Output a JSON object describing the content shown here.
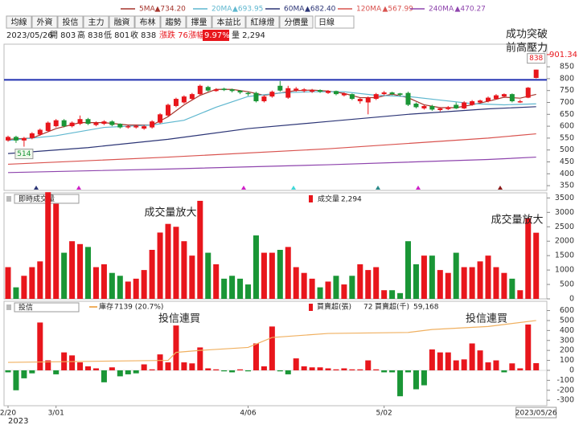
{
  "toolbar": {
    "tabs": [
      "均線",
      "外資",
      "投信",
      "主力",
      "融資",
      "布林",
      "趨勢",
      "擇量",
      "本益比",
      "紅綠燈",
      "分價量"
    ],
    "period": "日線"
  },
  "info": {
    "date": "2023/05/26",
    "ohlc": [
      "開 803",
      "高 838",
      "低 801",
      "收 838"
    ],
    "change": "漲跌 76",
    "pct_label": "漲幅",
    "pct": "9.97%",
    "volume": "量 2,294"
  },
  "chart_data": [
    {
      "type": "candlestick",
      "open": [
        540,
        555,
        540,
        550,
        565,
        580,
        600,
        625,
        600,
        610,
        630,
        605,
        610,
        620,
        610,
        595,
        595,
        590,
        595,
        615,
        645,
        685,
        700,
        715,
        735,
        765,
        748,
        758,
        755,
        750,
        740,
        740,
        705,
        725,
        770,
        720,
        750,
        748,
        745,
        752,
        740,
        748,
        730,
        735,
        705,
        700,
        715,
        735,
        742,
        738,
        740,
        695,
        675,
        685,
        668,
        672,
        690,
        675,
        690,
        700,
        705,
        715,
        725,
        735,
        700,
        720,
        803
      ],
      "high": [
        560,
        560,
        555,
        575,
        590,
        620,
        630,
        630,
        620,
        645,
        635,
        620,
        625,
        625,
        612,
        605,
        606,
        605,
        625,
        655,
        695,
        720,
        730,
        740,
        775,
        770,
        760,
        762,
        758,
        752,
        745,
        745,
        730,
        750,
        790,
        770,
        765,
        760,
        757,
        755,
        752,
        750,
        742,
        738,
        720,
        725,
        740,
        748,
        745,
        740,
        745,
        700,
        690,
        690,
        680,
        685,
        700,
        705,
        710,
        712,
        725,
        735,
        738,
        738,
        712,
        765,
        838
      ],
      "low": [
        535,
        530,
        514,
        545,
        560,
        575,
        595,
        595,
        595,
        605,
        605,
        600,
        605,
        600,
        590,
        590,
        590,
        585,
        590,
        610,
        640,
        680,
        695,
        710,
        730,
        745,
        745,
        748,
        742,
        735,
        728,
        700,
        700,
        720,
        745,
        715,
        745,
        742,
        740,
        740,
        736,
        730,
        725,
        710,
        695,
        650,
        710,
        730,
        730,
        725,
        685,
        675,
        670,
        665,
        662,
        668,
        672,
        672,
        686,
        695,
        700,
        712,
        720,
        700,
        698,
        718,
        801
      ],
      "close": [
        555,
        540,
        550,
        570,
        585,
        615,
        625,
        600,
        615,
        630,
        610,
        615,
        620,
        605,
        595,
        600,
        602,
        600,
        620,
        650,
        690,
        715,
        725,
        735,
        770,
        750,
        755,
        752,
        748,
        742,
        735,
        705,
        725,
        745,
        750,
        760,
        758,
        755,
        752,
        745,
        748,
        735,
        738,
        715,
        715,
        720,
        735,
        742,
        735,
        732,
        690,
        680,
        685,
        670,
        675,
        680,
        675,
        700,
        705,
        708,
        720,
        730,
        735,
        705,
        705,
        762,
        838
      ],
      "up_color": "#e8161c",
      "down_color": "#1a9636",
      "series": [
        {
          "name": "5MA",
          "legend_value": "▲734.20",
          "color": "#a5342c",
          "x": [
            0,
            3,
            6,
            9,
            12,
            15,
            18,
            20,
            22,
            24,
            26,
            28,
            30,
            32,
            34,
            36,
            38,
            40,
            42,
            44,
            46,
            48,
            50,
            52,
            54,
            56,
            58,
            60,
            62,
            64,
            66
          ],
          "values": [
            545,
            550,
            590,
            615,
            615,
            605,
            605,
            640,
            690,
            730,
            755,
            755,
            745,
            730,
            740,
            750,
            752,
            748,
            738,
            720,
            720,
            735,
            720,
            690,
            678,
            678,
            690,
            705,
            722,
            718,
            734
          ]
        },
        {
          "name": "20MA",
          "legend_value": "▲693.95",
          "color": "#5fb7cf",
          "x": [
            0,
            6,
            12,
            18,
            22,
            26,
            30,
            34,
            38,
            42,
            46,
            50,
            54,
            58,
            62,
            66
          ],
          "values": [
            540,
            560,
            595,
            605,
            625,
            680,
            725,
            740,
            745,
            745,
            730,
            725,
            710,
            695,
            690,
            694
          ]
        },
        {
          "name": "60MA",
          "legend_value": "▲682.40",
          "color": "#2c3576",
          "x": [
            0,
            10,
            20,
            30,
            40,
            50,
            60,
            66
          ],
          "values": [
            485,
            510,
            545,
            590,
            620,
            650,
            673,
            682
          ]
        },
        {
          "name": "120MA",
          "legend_value": "▲567.99",
          "color": "#d9534f",
          "x": [
            0,
            20,
            40,
            60,
            66
          ],
          "values": [
            440,
            470,
            505,
            550,
            568
          ]
        },
        {
          "name": "240MA",
          "legend_value": "▲470.27",
          "color": "#8e44ad",
          "x": [
            0,
            20,
            40,
            60,
            66
          ],
          "values": [
            405,
            420,
            438,
            460,
            470
          ]
        }
      ],
      "resistance": 795,
      "resistance_color": "#1f2fb0",
      "price_tags": [
        901.34,
        838,
        514
      ],
      "annotations": [
        "成功突破",
        "前高壓力"
      ],
      "ylim": [
        330,
        945
      ],
      "yticks": [
        350,
        400,
        450,
        500,
        550,
        600,
        650,
        700,
        750,
        800,
        850
      ]
    },
    {
      "type": "bar",
      "title": "即時成交量",
      "series": [
        {
          "name": "成交量",
          "legend_value": "2,294",
          "values": [
            1100,
            400,
            800,
            1100,
            1300,
            3700,
            3300,
            1600,
            2000,
            1900,
            1800,
            1100,
            1200,
            900,
            800,
            600,
            700,
            1000,
            1700,
            2300,
            2600,
            2500,
            2000,
            1500,
            3400,
            1600,
            1200,
            700,
            800,
            700,
            500,
            2200,
            1600,
            1600,
            1700,
            1800,
            1100,
            900,
            700,
            400,
            600,
            800,
            500,
            800,
            1200,
            1000,
            1100,
            300,
            300,
            200,
            2000,
            1200,
            1500,
            1500,
            1000,
            900,
            1600,
            1100,
            1100,
            1300,
            1500,
            1100,
            900,
            700,
            300,
            2800,
            2294
          ]
        }
      ],
      "annotations": [
        "成交量放大",
        "成交量放大"
      ],
      "ylim": [
        0,
        3650
      ],
      "yticks": [
        0,
        500,
        1000,
        1500,
        2000,
        2500,
        3000,
        3500
      ]
    },
    {
      "type": "bar",
      "title": "投信",
      "categories": [
        "2/20",
        null,
        null,
        null,
        null,
        null,
        "3/01",
        null,
        null,
        null,
        null,
        null,
        null,
        null,
        null,
        null,
        null,
        null,
        null,
        null,
        null,
        null,
        null,
        null,
        null,
        null,
        null,
        null,
        null,
        null,
        "4/06",
        null,
        null,
        null,
        null,
        null,
        null,
        null,
        null,
        null,
        null,
        null,
        null,
        null,
        null,
        null,
        null,
        "5/02",
        null,
        null,
        null,
        null,
        null,
        null,
        null,
        null,
        null,
        null,
        null,
        null,
        null,
        null,
        null,
        null,
        null,
        null,
        "2023/05/26"
      ],
      "year_label": "2023",
      "series": [
        {
          "name": "庫存",
          "legend_value": "7139 (20.7%)",
          "color": "#f0b060",
          "x": [
            0,
            20,
            21,
            24,
            30,
            33,
            40,
            50,
            53,
            60,
            66
          ],
          "values": [
            80,
            100,
            180,
            200,
            230,
            330,
            370,
            380,
            410,
            440,
            500
          ]
        },
        {
          "name": "買賣超(張)",
          "legend_value": "72",
          "extra_name": "買賣超(千)",
          "extra_value": "59,168",
          "values": [
            -20,
            -200,
            -80,
            -30,
            480,
            100,
            -40,
            180,
            150,
            80,
            40,
            20,
            -120,
            30,
            -60,
            -40,
            -30,
            60,
            10,
            160,
            80,
            450,
            80,
            70,
            230,
            20,
            10,
            -10,
            -20,
            10,
            -10,
            270,
            40,
            440,
            -10,
            -40,
            120,
            40,
            30,
            30,
            20,
            10,
            20,
            10,
            10,
            100,
            10,
            -20,
            -20,
            -260,
            -20,
            -190,
            -150,
            210,
            180,
            180,
            100,
            110,
            270,
            200,
            80,
            100,
            -20,
            70,
            20,
            460,
            72
          ]
        }
      ],
      "pos_color": "#e8161c",
      "neg_color": "#1a9636",
      "annotations": [
        "投信連買",
        "投信連買"
      ],
      "ylim": [
        -355,
        685
      ],
      "yticks": [
        -300,
        -200,
        -100,
        0,
        100,
        200,
        300,
        400,
        500,
        600
      ]
    }
  ]
}
